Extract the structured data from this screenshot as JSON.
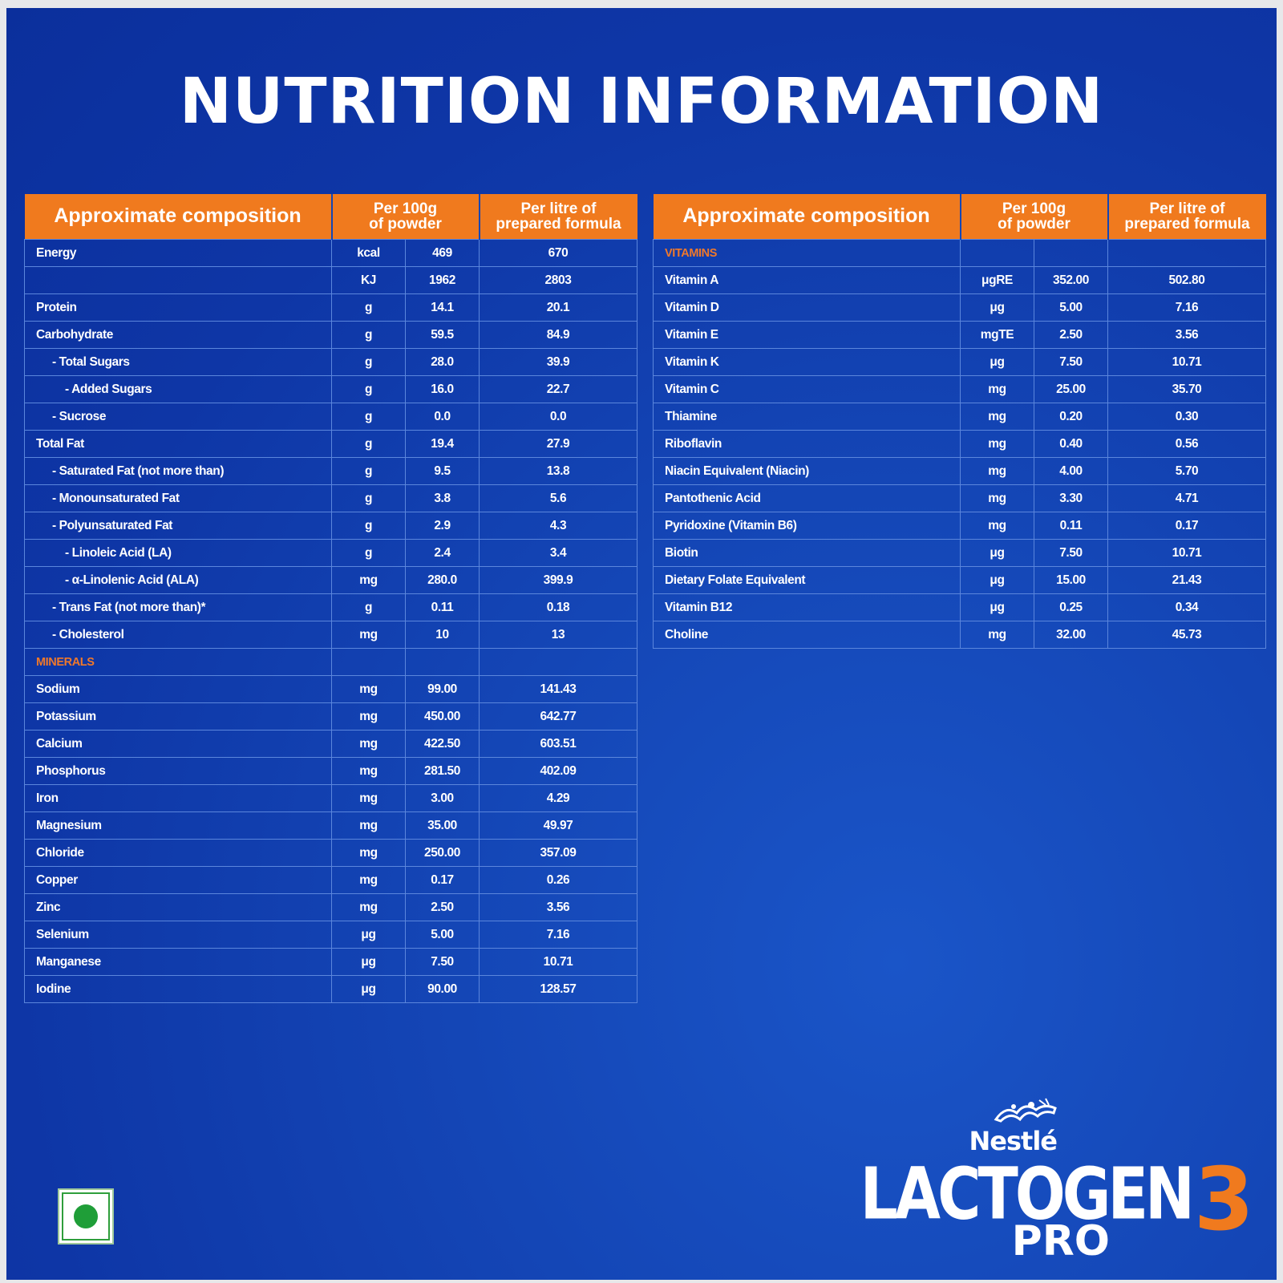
{
  "title": "NUTRITION INFORMATION",
  "table_headers": {
    "composition": "Approximate composition",
    "per100g_line1": "Per 100g",
    "per100g_line2": "of powder",
    "perlitre_line1": "Per litre of",
    "perlitre_line2": "prepared formula"
  },
  "left_table": {
    "rows": [
      {
        "name": "Energy",
        "unit": "kcal",
        "per100g": "469",
        "perlitre": "670",
        "indent": 0
      },
      {
        "name": "",
        "unit": "KJ",
        "per100g": "1962",
        "perlitre": "2803",
        "indent": 0
      },
      {
        "name": "Protein",
        "unit": "g",
        "per100g": "14.1",
        "perlitre": "20.1",
        "indent": 0
      },
      {
        "name": "Carbohydrate",
        "unit": "g",
        "per100g": "59.5",
        "perlitre": "84.9",
        "indent": 0
      },
      {
        "name": "- Total Sugars",
        "unit": "g",
        "per100g": "28.0",
        "perlitre": "39.9",
        "indent": 1
      },
      {
        "name": "- Added Sugars",
        "unit": "g",
        "per100g": "16.0",
        "perlitre": "22.7",
        "indent": 2
      },
      {
        "name": "- Sucrose",
        "unit": "g",
        "per100g": "0.0",
        "perlitre": "0.0",
        "indent": 1
      },
      {
        "name": "Total Fat",
        "unit": "g",
        "per100g": "19.4",
        "perlitre": "27.9",
        "indent": 0
      },
      {
        "name": "- Saturated Fat (not more than)",
        "unit": "g",
        "per100g": "9.5",
        "perlitre": "13.8",
        "indent": 1
      },
      {
        "name": "- Monounsaturated Fat",
        "unit": "g",
        "per100g": "3.8",
        "perlitre": "5.6",
        "indent": 1
      },
      {
        "name": "- Polyunsaturated Fat",
        "unit": "g",
        "per100g": "2.9",
        "perlitre": "4.3",
        "indent": 1
      },
      {
        "name": "- Linoleic Acid (LA)",
        "unit": "g",
        "per100g": "2.4",
        "perlitre": "3.4",
        "indent": 2
      },
      {
        "name": "- α-Linolenic Acid (ALA)",
        "unit": "mg",
        "per100g": "280.0",
        "perlitre": "399.9",
        "indent": 2
      },
      {
        "name": "- Trans Fat (not more than)*",
        "unit": "g",
        "per100g": "0.11",
        "perlitre": "0.18",
        "indent": 1
      },
      {
        "name": "- Cholesterol",
        "unit": "mg",
        "per100g": "10",
        "perlitre": "13",
        "indent": 1
      },
      {
        "name": "MINERALS",
        "unit": "",
        "per100g": "",
        "perlitre": "",
        "indent": 0,
        "section": true
      },
      {
        "name": "Sodium",
        "unit": "mg",
        "per100g": "99.00",
        "perlitre": "141.43",
        "indent": 0
      },
      {
        "name": "Potassium",
        "unit": "mg",
        "per100g": "450.00",
        "perlitre": "642.77",
        "indent": 0
      },
      {
        "name": "Calcium",
        "unit": "mg",
        "per100g": "422.50",
        "perlitre": "603.51",
        "indent": 0
      },
      {
        "name": "Phosphorus",
        "unit": "mg",
        "per100g": "281.50",
        "perlitre": "402.09",
        "indent": 0
      },
      {
        "name": "Iron",
        "unit": "mg",
        "per100g": "3.00",
        "perlitre": "4.29",
        "indent": 0
      },
      {
        "name": "Magnesium",
        "unit": "mg",
        "per100g": "35.00",
        "perlitre": "49.97",
        "indent": 0
      },
      {
        "name": "Chloride",
        "unit": "mg",
        "per100g": "250.00",
        "perlitre": "357.09",
        "indent": 0
      },
      {
        "name": "Copper",
        "unit": "mg",
        "per100g": "0.17",
        "perlitre": "0.26",
        "indent": 0
      },
      {
        "name": "Zinc",
        "unit": "mg",
        "per100g": "2.50",
        "perlitre": "3.56",
        "indent": 0
      },
      {
        "name": "Selenium",
        "unit": "μg",
        "per100g": "5.00",
        "perlitre": "7.16",
        "indent": 0
      },
      {
        "name": "Manganese",
        "unit": "μg",
        "per100g": "7.50",
        "perlitre": "10.71",
        "indent": 0
      },
      {
        "name": "Iodine",
        "unit": "μg",
        "per100g": "90.00",
        "perlitre": "128.57",
        "indent": 0
      }
    ]
  },
  "right_table": {
    "rows": [
      {
        "name": "VITAMINS",
        "unit": "",
        "per100g": "",
        "perlitre": "",
        "indent": 0,
        "section": true
      },
      {
        "name": "Vitamin A",
        "unit": "μgRE",
        "per100g": "352.00",
        "perlitre": "502.80",
        "indent": 0
      },
      {
        "name": "Vitamin D",
        "unit": "μg",
        "per100g": "5.00",
        "perlitre": "7.16",
        "indent": 0
      },
      {
        "name": "Vitamin E",
        "unit": "mgTE",
        "per100g": "2.50",
        "perlitre": "3.56",
        "indent": 0
      },
      {
        "name": "Vitamin K",
        "unit": "μg",
        "per100g": "7.50",
        "perlitre": "10.71",
        "indent": 0
      },
      {
        "name": "Vitamin C",
        "unit": "mg",
        "per100g": "25.00",
        "perlitre": "35.70",
        "indent": 0
      },
      {
        "name": "Thiamine",
        "unit": "mg",
        "per100g": "0.20",
        "perlitre": "0.30",
        "indent": 0
      },
      {
        "name": "Riboflavin",
        "unit": "mg",
        "per100g": "0.40",
        "perlitre": "0.56",
        "indent": 0
      },
      {
        "name": "Niacin Equivalent (Niacin)",
        "unit": "mg",
        "per100g": "4.00",
        "perlitre": "5.70",
        "indent": 0
      },
      {
        "name": "Pantothenic Acid",
        "unit": "mg",
        "per100g": "3.30",
        "perlitre": "4.71",
        "indent": 0
      },
      {
        "name": "Pyridoxine (Vitamin B6)",
        "unit": "mg",
        "per100g": "0.11",
        "perlitre": "0.17",
        "indent": 0
      },
      {
        "name": "Biotin",
        "unit": "μg",
        "per100g": "7.50",
        "perlitre": "10.71",
        "indent": 0
      },
      {
        "name": "Dietary Folate Equivalent",
        "unit": "μg",
        "per100g": "15.00",
        "perlitre": "21.43",
        "indent": 0
      },
      {
        "name": "Vitamin B12",
        "unit": "μg",
        "per100g": "0.25",
        "perlitre": "0.34",
        "indent": 0
      },
      {
        "name": "Choline",
        "unit": "mg",
        "per100g": "32.00",
        "perlitre": "45.73",
        "indent": 0
      }
    ]
  },
  "brand": {
    "company": "Nestlé",
    "product": "LACTOGEN",
    "stage": "3",
    "variant": "PRO"
  },
  "colors": {
    "background": "#1446b6",
    "header_orange": "#f07a1e",
    "section_orange": "#f0782a",
    "veg_green": "#1f9e38"
  },
  "icons": {
    "veg_mark": "vegetarian-mark-icon",
    "nestle_logo": "nest-logo-icon"
  }
}
